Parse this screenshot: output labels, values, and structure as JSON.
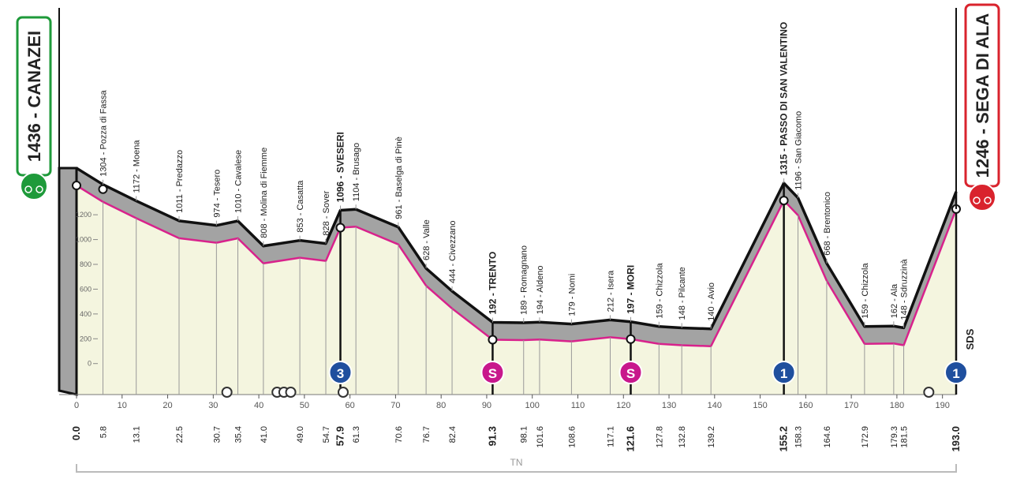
{
  "chart_data": {
    "type": "line",
    "x": [
      0.0,
      5.8,
      13.1,
      22.5,
      30.7,
      35.4,
      41.0,
      49.0,
      54.7,
      57.9,
      61.3,
      70.6,
      76.7,
      82.4,
      91.3,
      98.1,
      101.6,
      108.6,
      117.1,
      121.6,
      127.8,
      132.8,
      139.2,
      155.2,
      158.3,
      164.6,
      172.9,
      179.3,
      181.5,
      193.0
    ],
    "x_labels": [
      "0.0",
      "5.8",
      "13.1",
      "22.5",
      "30.7",
      "35.4",
      "41.0",
      "49.0",
      "54.7",
      "57.9",
      "61.3",
      "70.6",
      "76.7",
      "82.4",
      "91.3",
      "98.1",
      "101.6",
      "108.6",
      "117.1",
      "121.6",
      "127.8",
      "132.8",
      "139.2",
      "155.2",
      "158.3",
      "164.6",
      "172.9",
      "179.3",
      "181.5",
      "193.0"
    ],
    "values": [
      1436,
      1304,
      1172,
      1011,
      974,
      1010,
      808,
      853,
      828,
      1096,
      1104,
      961,
      628,
      444,
      192,
      189,
      194,
      179,
      212,
      197,
      159,
      148,
      140,
      1315,
      1196,
      668,
      159,
      162,
      148,
      1246
    ],
    "labels": [
      "1436 - CANAZEI",
      "1304 - Pozza di Fassa",
      "1172 - Moena",
      "1011 - Predazzo",
      "974 - Tesero",
      "1010 - Cavalese",
      "808 - Molina di Fiemme",
      "853 - Casatta",
      "828 - Sover",
      "1096 - SVESERI",
      "1104 - Brusago",
      "961 - Baselga di Pinè",
      "628 - Valle",
      "444 - Civezzano",
      "192 - TRENTO",
      "189 - Romagnano",
      "194 - Aldeno",
      "179 - Nomi",
      "212 - Isera",
      "197 - MORI",
      "159 - Chizzola",
      "148 - Pilcante",
      "140 - Avio",
      "1315 - PASSO DI SAN VALENTINO",
      "1196 - San Giacomo",
      "668 - Brentonico",
      "159 - Chizzola",
      "162 - Ala",
      "148 - Sdruzzinà",
      "1246 - SEGA DI ALA"
    ],
    "bold": [
      0,
      9,
      14,
      19,
      23,
      29
    ],
    "markers": [
      {
        "x": 57.9,
        "label": "3",
        "color": "#1f4f9e"
      },
      {
        "x": 91.3,
        "label": "S",
        "color": "#c8178c"
      },
      {
        "x": 121.6,
        "label": "S",
        "color": "#c8178c"
      },
      {
        "x": 155.2,
        "label": "1",
        "color": "#1f4f9e"
      },
      {
        "x": 193.0,
        "label": "1",
        "color": "#1f4f9e"
      }
    ],
    "xlim": [
      0,
      193
    ],
    "ylim": [
      -250,
      1500
    ],
    "xticks": [
      0,
      10,
      20,
      30,
      40,
      50,
      60,
      70,
      80,
      90,
      100,
      110,
      120,
      130,
      140,
      150,
      160,
      170,
      180,
      190
    ],
    "yticks": [
      0,
      200,
      400,
      600,
      800,
      1000,
      1200
    ],
    "region": "TN",
    "logo": "SDS",
    "line_color": "#d8228c",
    "fill_color": "#f4f5df",
    "band_color": "#a3a3a3",
    "start_color": "#1e9a3a",
    "finish_color": "#d9232d"
  }
}
